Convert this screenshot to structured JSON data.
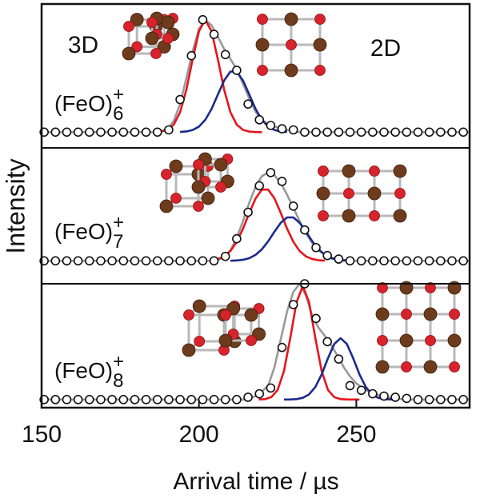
{
  "chart_data": [
    {
      "type": "line",
      "label": "(FeO)",
      "label_sub": "6",
      "label_sup": "+",
      "ylabel": "Intensity",
      "xlim": [
        150,
        286
      ],
      "ylim": [
        -0.14,
        1.14
      ],
      "x": [
        150.8,
        154.4,
        158,
        161.6,
        165.2,
        168.8,
        172.4,
        176,
        179.6,
        183.2,
        186.8,
        190.4,
        194,
        197.6,
        201.2,
        204.8,
        208.4,
        212,
        215.6,
        219.2,
        222.8,
        226.4,
        230,
        233.6,
        237.2,
        240.8,
        244.4,
        248,
        251.6,
        255.2,
        258.8,
        262.4,
        266,
        269.6,
        273.2,
        276.8,
        280.4,
        284
      ],
      "values": [
        0,
        0,
        0,
        0,
        0,
        0,
        0,
        0,
        0,
        0,
        0,
        0.02,
        0.29,
        0.68,
        1.0,
        0.87,
        0.69,
        0.55,
        0.25,
        0.11,
        0.06,
        0.03,
        0.02,
        0,
        0,
        0,
        0,
        0,
        0,
        0,
        0,
        0,
        0,
        0,
        0,
        0,
        0,
        0
      ],
      "series": [
        {
          "color": "#999999",
          "x": [
            150,
            186,
            188,
            190,
            192,
            194,
            196,
            198,
            200,
            202,
            204,
            206,
            208,
            210,
            212,
            214,
            216,
            218,
            220,
            222,
            224,
            226,
            228,
            230,
            232,
            286
          ],
          "values": [
            0,
            0,
            0.01,
            0.03,
            0.1,
            0.25,
            0.48,
            0.72,
            0.92,
            1.0,
            0.95,
            0.85,
            0.74,
            0.65,
            0.56,
            0.43,
            0.3,
            0.18,
            0.11,
            0.07,
            0.05,
            0.03,
            0.02,
            0.01,
            0,
            0
          ]
        },
        {
          "name": "3D",
          "color": "#e8141c",
          "x": [
            186,
            188,
            190,
            192,
            194,
            196,
            198,
            200,
            202,
            204,
            206,
            208,
            210,
            212,
            214,
            216,
            218,
            220
          ],
          "values": [
            0.001,
            0.005,
            0.02,
            0.067,
            0.177,
            0.378,
            0.649,
            0.897,
            1.0,
            0.897,
            0.649,
            0.378,
            0.177,
            0.067,
            0.02,
            0.005,
            0.001,
            0.0
          ]
        },
        {
          "name": "2D",
          "color": "#1a2a8c",
          "x": [
            194,
            196,
            198,
            200,
            202,
            204,
            206,
            208,
            210,
            212,
            214,
            216,
            218,
            220,
            222,
            224,
            226,
            228
          ],
          "values": [
            0.002,
            0.006,
            0.019,
            0.049,
            0.109,
            0.206,
            0.334,
            0.459,
            0.539,
            0.539,
            0.459,
            0.334,
            0.206,
            0.109,
            0.049,
            0.019,
            0.006,
            0.002
          ]
        }
      ]
    },
    {
      "type": "line",
      "label": "(FeO)",
      "label_sub": "7",
      "label_sup": "+",
      "xlim": [
        150,
        286
      ],
      "ylim": [
        -0.26,
        1.28
      ],
      "x": [
        150.8,
        154.4,
        158,
        161.6,
        165.2,
        168.8,
        172.4,
        176,
        179.6,
        183.2,
        186.8,
        190.4,
        194,
        197.6,
        201.2,
        204.8,
        208.4,
        212,
        215.6,
        219.2,
        222.8,
        226.4,
        230,
        233.6,
        237.2,
        240.8,
        244.4,
        248,
        251.6,
        255.2,
        258.8,
        262.4,
        266,
        269.6,
        273.2,
        276.8,
        280.4,
        284
      ],
      "values": [
        0,
        0,
        0,
        0,
        0,
        0,
        0,
        0,
        0,
        0,
        0,
        0,
        0,
        0,
        0,
        0,
        0.05,
        0.25,
        0.55,
        0.85,
        1.0,
        0.9,
        0.62,
        0.35,
        0.15,
        0.06,
        0.02,
        0,
        0,
        0,
        0,
        0,
        0,
        0,
        0,
        0,
        0,
        0
      ],
      "series": [
        {
          "color": "#999999",
          "x": [
            150,
            204,
            206,
            208,
            210,
            212,
            214,
            216,
            218,
            220,
            222,
            224,
            226,
            228,
            230,
            232,
            234,
            236,
            238,
            240,
            242,
            244,
            246,
            248,
            250,
            286
          ],
          "values": [
            0,
            0,
            0.01,
            0.04,
            0.12,
            0.26,
            0.45,
            0.66,
            0.84,
            0.96,
            1.0,
            0.97,
            0.88,
            0.75,
            0.6,
            0.45,
            0.31,
            0.2,
            0.12,
            0.07,
            0.04,
            0.02,
            0.01,
            0,
            0,
            0
          ]
        },
        {
          "color": "#e8141c",
          "x": [
            204,
            206,
            208,
            210,
            212,
            214,
            216,
            218,
            220,
            222,
            224,
            226,
            228,
            230,
            232,
            234,
            236,
            238,
            240
          ],
          "values": [
            0.007,
            0.02,
            0.05,
            0.111,
            0.215,
            0.365,
            0.543,
            0.707,
            0.807,
            0.807,
            0.707,
            0.543,
            0.365,
            0.215,
            0.111,
            0.05,
            0.02,
            0.007,
            0.002
          ]
        },
        {
          "color": "#1a2a8c",
          "x": [
            210,
            212,
            214,
            216,
            218,
            220,
            222,
            224,
            226,
            228,
            230,
            232,
            234,
            236,
            238,
            240,
            242,
            244,
            246,
            248
          ],
          "values": [
            0.001,
            0.004,
            0.012,
            0.03,
            0.068,
            0.131,
            0.222,
            0.331,
            0.431,
            0.492,
            0.492,
            0.431,
            0.331,
            0.222,
            0.131,
            0.068,
            0.03,
            0.012,
            0.004,
            0.001
          ]
        }
      ]
    },
    {
      "type": "line",
      "label": "(FeO)",
      "label_sub": "8",
      "label_sup": "+",
      "xlabel": "Arrival time / µs",
      "xlim": [
        150,
        286
      ],
      "ylim": [
        -0.07,
        1.0
      ],
      "xticks": [
        150,
        200,
        250
      ],
      "x": [
        150.8,
        154.4,
        158,
        161.6,
        165.2,
        168.8,
        172.4,
        176,
        179.6,
        183.2,
        186.8,
        190.4,
        194,
        197.6,
        201.2,
        204.8,
        208.4,
        212,
        215.6,
        219.2,
        222.8,
        226.4,
        230,
        233.6,
        237.2,
        240.8,
        244.4,
        248,
        251.6,
        255.2,
        258.8,
        262.4,
        266,
        269.6,
        273.2,
        276.8,
        280.4,
        284
      ],
      "values": [
        0,
        0,
        0,
        0,
        0,
        0,
        0,
        0,
        0,
        0,
        0,
        0,
        0,
        0,
        0,
        0,
        0,
        0,
        0.02,
        0.05,
        0.1,
        0.45,
        0.82,
        1.0,
        0.7,
        0.5,
        0.35,
        0.12,
        0.08,
        0.05,
        0.03,
        0.02,
        0.01,
        0,
        0,
        0,
        0,
        0
      ],
      "series": [
        {
          "color": "#999999",
          "x": [
            150,
            214,
            216,
            218,
            220,
            222,
            224,
            226,
            228,
            230,
            232,
            234,
            236,
            238,
            240,
            242,
            244,
            246,
            248,
            250,
            252,
            254,
            256,
            258,
            260,
            262,
            264,
            266,
            286
          ],
          "values": [
            0,
            0,
            0.01,
            0.03,
            0.07,
            0.12,
            0.28,
            0.52,
            0.76,
            0.93,
            1.0,
            0.9,
            0.72,
            0.62,
            0.55,
            0.47,
            0.38,
            0.28,
            0.2,
            0.14,
            0.1,
            0.07,
            0.05,
            0.03,
            0.02,
            0.01,
            0.005,
            0,
            0
          ]
        },
        {
          "color": "#e8141c",
          "x": [
            219,
            221,
            223,
            225,
            227,
            229,
            231,
            233,
            235,
            237,
            239,
            241,
            243,
            245,
            247,
            249,
            251
          ],
          "values": [
            0.001,
            0.004,
            0.021,
            0.083,
            0.245,
            0.529,
            0.84,
            0.98,
            0.84,
            0.529,
            0.245,
            0.083,
            0.021,
            0.004,
            0.001,
            0.0,
            0.0
          ]
        },
        {
          "color": "#1a2a8c",
          "x": [
            227,
            229,
            231,
            233,
            235,
            237,
            239,
            241,
            243,
            245,
            247,
            249,
            251,
            253,
            255,
            257,
            259,
            261,
            263
          ],
          "values": [
            0,
            0.001,
            0.004,
            0.015,
            0.045,
            0.109,
            0.218,
            0.357,
            0.48,
            0.53,
            0.48,
            0.357,
            0.218,
            0.109,
            0.045,
            0.015,
            0.004,
            0.001,
            0
          ]
        }
      ]
    }
  ]
}
